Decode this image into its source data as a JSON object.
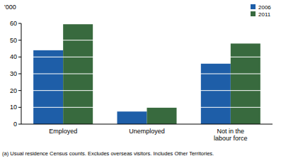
{
  "chart_data": {
    "type": "bar",
    "y_label": "'000",
    "categories": [
      "Employed",
      "Unemployed",
      "Not in the labour force"
    ],
    "series": [
      {
        "name": "2006",
        "color": "#1e5ea8",
        "values": [
          44,
          7.5,
          36
        ]
      },
      {
        "name": "2011",
        "color": "#386a3e",
        "values": [
          59.5,
          10,
          48
        ]
      }
    ],
    "ylim": [
      0,
      60
    ],
    "yticks": [
      0,
      10,
      20,
      30,
      40,
      50,
      60
    ],
    "grid": true,
    "legend": "top-right",
    "annotations": [
      "(a) Usual residence Census counts. Excludes overseas visitors. Includes Other Territories."
    ]
  }
}
